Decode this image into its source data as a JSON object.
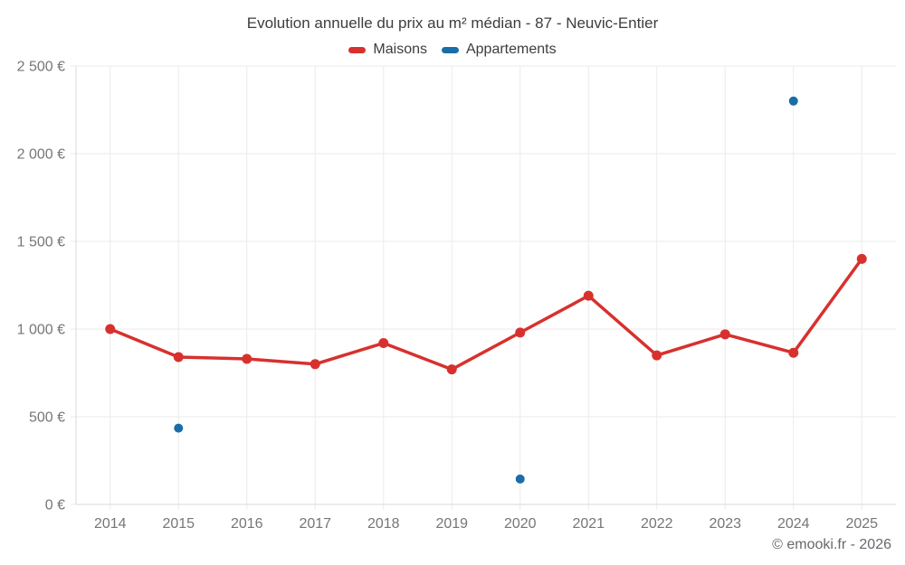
{
  "title": "Evolution annuelle du prix au m² médian - 87 - Neuvic-Entier",
  "footer": "© emooki.fr - 2026",
  "legend": [
    {
      "label": "Maisons",
      "color": "#d7312e"
    },
    {
      "label": "Appartements",
      "color": "#1a6da8"
    }
  ],
  "chart_data": {
    "type": "line",
    "title": "Evolution annuelle du prix au m² médian - 87 - Neuvic-Entier",
    "categories": [
      "2014",
      "2015",
      "2016",
      "2017",
      "2018",
      "2019",
      "2020",
      "2021",
      "2022",
      "2023",
      "2024",
      "2025"
    ],
    "series": [
      {
        "name": "Maisons",
        "type": "line",
        "color": "#d7312e",
        "values": [
          1000,
          840,
          830,
          800,
          920,
          770,
          980,
          1190,
          850,
          970,
          865,
          1400
        ]
      },
      {
        "name": "Appartements",
        "type": "scatter",
        "color": "#1a6da8",
        "values": [
          null,
          435,
          null,
          null,
          null,
          null,
          145,
          null,
          null,
          null,
          2300,
          null
        ]
      }
    ],
    "xlabel": "",
    "ylabel": "",
    "ylim": [
      0,
      2500
    ],
    "ytick_step": 500,
    "ytick_labels": [
      "0 €",
      "500 €",
      "1 000 €",
      "1 500 €",
      "2 000 €",
      "2 500 €"
    ],
    "grid": true,
    "legend_position": "top",
    "grid_color": "#ebebeb",
    "axis_color": "#d9d9d9",
    "tick_label_color": "#76767a"
  }
}
